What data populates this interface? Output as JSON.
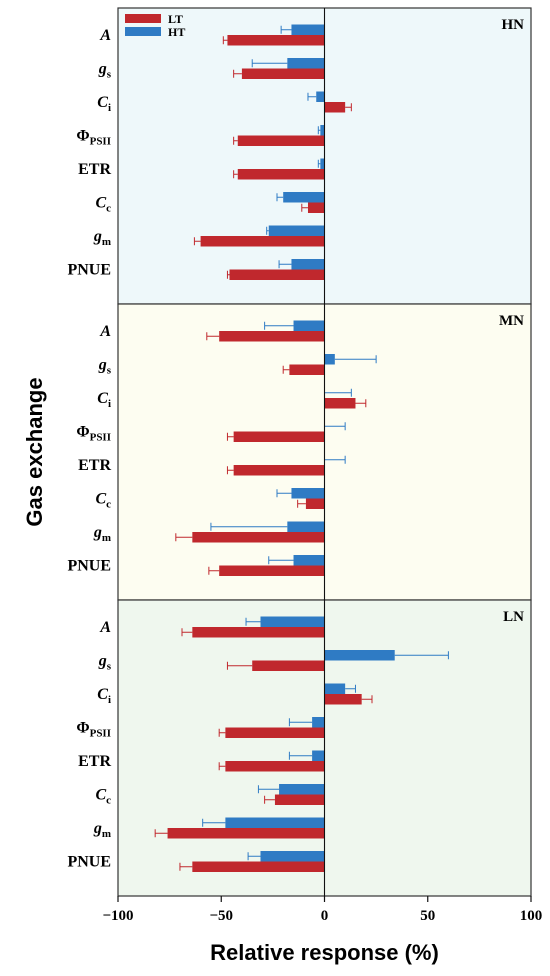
{
  "chart_data": {
    "type": "bar",
    "orientation": "horizontal",
    "xlabel": "Relative response (%)",
    "ylabel": "Gas exchange",
    "xlim": [
      -100,
      100
    ],
    "xticks": [
      -100,
      -50,
      0,
      50,
      100
    ],
    "xtick_labels": [
      "−100",
      "−50",
      "0",
      "50",
      "100"
    ],
    "legend": {
      "position": "top-left",
      "entries": [
        {
          "name": "LT",
          "color": "#C0282D"
        },
        {
          "name": "HT",
          "color": "#2F7BC4"
        }
      ]
    },
    "categories": [
      {
        "key": "A",
        "base": "A",
        "sub": "",
        "italic": true
      },
      {
        "key": "gs",
        "base": "g",
        "sub": "s",
        "italic": true
      },
      {
        "key": "Ci",
        "base": "C",
        "sub": "i",
        "italic": true
      },
      {
        "key": "PhiPSII",
        "base": "Φ",
        "sub": "PSII",
        "italic": false
      },
      {
        "key": "ETR",
        "base": "ETR",
        "sub": "",
        "italic": false
      },
      {
        "key": "Cc",
        "base": "C",
        "sub": "c",
        "italic": true
      },
      {
        "key": "gm",
        "base": "g",
        "sub": "m",
        "italic": true
      },
      {
        "key": "PNUE",
        "base": "PNUE",
        "sub": "",
        "italic": false
      }
    ],
    "panels": [
      {
        "title": "HN",
        "background": "#EEF8FA",
        "series": [
          {
            "name": "HT",
            "values": [
              -16,
              -18,
              -4,
              -2,
              -2,
              -20,
              -27,
              -16
            ],
            "errors": [
              5,
              17,
              4,
              1,
              1,
              3,
              1,
              6
            ]
          },
          {
            "name": "LT",
            "values": [
              -47,
              -40,
              10,
              -42,
              -42,
              -8,
              -60,
              -46
            ],
            "errors": [
              2,
              4,
              3,
              2,
              2,
              3,
              3,
              1
            ]
          }
        ]
      },
      {
        "title": "MN",
        "background": "#FDFDF1",
        "series": [
          {
            "name": "HT",
            "values": [
              -15,
              5,
              0,
              0,
              0,
              -16,
              -18,
              -15
            ],
            "errors": [
              14,
              20,
              13,
              10,
              10,
              7,
              37,
              12
            ]
          },
          {
            "name": "LT",
            "values": [
              -51,
              -17,
              15,
              -44,
              -44,
              -9,
              -64,
              -51
            ],
            "errors": [
              6,
              3,
              5,
              3,
              3,
              4,
              8,
              5
            ]
          }
        ]
      },
      {
        "title": "LN",
        "background": "#EFF7EE",
        "series": [
          {
            "name": "HT",
            "values": [
              -31,
              34,
              10,
              -6,
              -6,
              -22,
              -48,
              -31
            ],
            "errors": [
              7,
              26,
              5,
              11,
              11,
              10,
              11,
              6
            ]
          },
          {
            "name": "LT",
            "values": [
              -64,
              -35,
              18,
              -48,
              -48,
              -24,
              -76,
              -64
            ],
            "errors": [
              5,
              12,
              5,
              3,
              3,
              5,
              6,
              6
            ]
          }
        ]
      }
    ]
  }
}
